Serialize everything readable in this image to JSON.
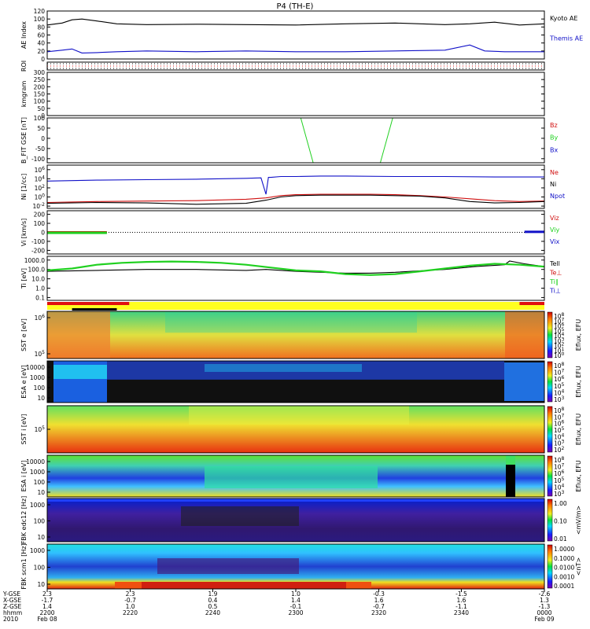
{
  "title": "P4 (TH-E)",
  "colors": {
    "black": "#000000",
    "blue": "#1010c8",
    "red": "#d01010",
    "green": "#20d020",
    "roi_red": "#e01010",
    "roi_yellow": "#ffff20"
  },
  "chart_data": [
    {
      "id": "ae",
      "type": "line",
      "ylabel": "AE Index",
      "yticks": [
        "120",
        "100",
        "80",
        "60",
        "40",
        "20",
        "0"
      ],
      "ylim": [
        0,
        120
      ],
      "series": [
        {
          "name": "Kyoto AE",
          "color": "#000000",
          "x": [
            0,
            3,
            5,
            7,
            10,
            14,
            20,
            30,
            40,
            50,
            60,
            70,
            80,
            85,
            90,
            95,
            100
          ],
          "y": [
            85,
            90,
            98,
            100,
            95,
            88,
            86,
            87,
            86,
            85,
            88,
            90,
            86,
            88,
            92,
            85,
            88
          ]
        },
        {
          "name": "Themis AE",
          "color": "#1010c8",
          "x": [
            0,
            3,
            5,
            7,
            10,
            14,
            20,
            30,
            40,
            50,
            60,
            70,
            80,
            85,
            88,
            92,
            96,
            100
          ],
          "y": [
            18,
            22,
            25,
            15,
            16,
            18,
            20,
            18,
            20,
            18,
            18,
            20,
            22,
            35,
            20,
            18,
            18,
            18
          ]
        }
      ]
    },
    {
      "id": "roi",
      "type": "heatmap",
      "ylabel": "ROI"
    },
    {
      "id": "kmgram",
      "type": "line",
      "ylabel": "kmgram",
      "yticks": [
        "300",
        "250",
        "200",
        "150",
        "100",
        "50",
        "0"
      ],
      "ylim": [
        0,
        300
      ],
      "series": []
    },
    {
      "id": "bfit",
      "type": "line",
      "ylabel": "B_FIT GSE [nT]",
      "yticks": [
        "100",
        "50",
        "0",
        "-50",
        "-100"
      ],
      "ylim": [
        -120,
        100
      ],
      "series": [
        {
          "name": "Bz",
          "color": "#d01010",
          "x": [],
          "y": []
        },
        {
          "name": "By",
          "color": "#20d020",
          "x": [
            51,
            53.5,
            67,
            69.5
          ],
          "y": [
            100,
            -120,
            -120,
            100
          ]
        },
        {
          "name": "Bx",
          "color": "#1010c8",
          "x": [],
          "y": []
        }
      ]
    },
    {
      "id": "ni",
      "type": "line",
      "log": true,
      "ylabel": "Ni",
      "yunits": "[1/cc]",
      "yticks": [
        "10^6",
        "10^4",
        "10^2",
        "10^0",
        "10^-2"
      ],
      "ylim": [
        -2.5,
        7
      ],
      "series": [
        {
          "name": "Ne",
          "color": "#d01010",
          "x": [
            0,
            10,
            20,
            30,
            40,
            44,
            47,
            50,
            55,
            60,
            65,
            70,
            75,
            80,
            85,
            90,
            95,
            100
          ],
          "y": [
            -1.2,
            -1.0,
            -0.9,
            -0.8,
            -0.5,
            -0.2,
            0.3,
            0.5,
            0.6,
            0.6,
            0.6,
            0.5,
            0.3,
            0.0,
            -0.4,
            -0.8,
            -1.0,
            -0.9
          ]
        },
        {
          "name": "Ni",
          "color": "#000000",
          "x": [
            0,
            10,
            20,
            30,
            40,
            44,
            47,
            50,
            55,
            60,
            65,
            70,
            75,
            80,
            85,
            90,
            95,
            100
          ],
          "y": [
            -1.4,
            -1.2,
            -1.3,
            -1.6,
            -1.4,
            -0.7,
            0.0,
            0.3,
            0.4,
            0.4,
            0.4,
            0.3,
            0.2,
            -0.2,
            -1.0,
            -1.3,
            -1.2,
            -1.0
          ]
        },
        {
          "name": "Npot",
          "color": "#1010c8",
          "x": [
            0,
            10,
            20,
            30,
            40,
            43,
            44,
            44.5,
            45,
            47,
            50,
            55,
            60,
            70,
            80,
            90,
            100
          ],
          "y": [
            3.5,
            3.7,
            3.8,
            3.9,
            4.1,
            4.2,
            0.6,
            4.3,
            4.3,
            4.5,
            4.5,
            4.6,
            4.6,
            4.5,
            4.5,
            4.4,
            4.4
          ]
        }
      ]
    },
    {
      "id": "vi",
      "type": "line",
      "ylabel": "Vi [km/s]",
      "yticks": [
        "200",
        "100",
        "0",
        "-100",
        "-200"
      ],
      "ylim": [
        -240,
        240
      ],
      "series": [
        {
          "name": "Viz",
          "color": "#d01010",
          "x": [
            0,
            12
          ],
          "y": [
            0,
            0
          ]
        },
        {
          "name": "Viy",
          "color": "#20d020",
          "x": [
            0,
            12
          ],
          "y": [
            -5,
            -5
          ]
        },
        {
          "name": "Vix",
          "color": "#1010c8",
          "x": [
            96,
            100
          ],
          "y": [
            5,
            5
          ]
        }
      ]
    },
    {
      "id": "ti",
      "type": "line",
      "log": true,
      "ylabel": "Ti [eV]",
      "yticks": [
        "1000.0",
        "100.0",
        "10.0",
        "1.0",
        "0.1"
      ],
      "ylim": [
        -1.3,
        3.4
      ],
      "series": [
        {
          "name": "Tell",
          "color": "#000000",
          "x": [
            0,
            10,
            20,
            30,
            40,
            44,
            50,
            60,
            65,
            70,
            80,
            86,
            92,
            93,
            96,
            100
          ],
          "y": [
            1.8,
            1.9,
            2.0,
            2.0,
            1.9,
            2.0,
            1.8,
            1.6,
            1.6,
            1.7,
            2.0,
            2.3,
            2.5,
            2.9,
            2.6,
            2.3
          ]
        },
        {
          "name": "Te⊥",
          "color": "#d01010",
          "x": [],
          "y": []
        },
        {
          "name": "Ti∥",
          "color": "#20d020",
          "x": [
            0,
            5,
            10,
            15,
            20,
            25,
            30,
            35,
            40,
            45,
            50,
            55,
            60,
            65,
            70,
            75,
            80,
            85,
            90,
            95,
            100
          ],
          "y": [
            1.9,
            2.1,
            2.5,
            2.7,
            2.8,
            2.85,
            2.8,
            2.7,
            2.5,
            2.2,
            1.9,
            1.8,
            1.5,
            1.4,
            1.5,
            1.8,
            2.1,
            2.4,
            2.6,
            2.5,
            2.3
          ]
        },
        {
          "name": "Ti⊥",
          "color": "#1010c8",
          "x": [],
          "y": []
        }
      ]
    },
    {
      "id": "region",
      "type": "heatmap"
    },
    {
      "id": "sst_e",
      "type": "heatmap",
      "ylabel": "SST e [eV]",
      "yticks": [
        "10^6",
        "10^5"
      ],
      "colorbar": "Eflux, EFU",
      "cbticks": [
        "10^8",
        "10^7",
        "10^6",
        "10^5",
        "10^4",
        "10^3",
        "10^2",
        "10^1",
        "10^0"
      ]
    },
    {
      "id": "esa_e",
      "type": "heatmap",
      "ylabel": "ESA e [eV]",
      "yticks": [
        "10000",
        "1000",
        "100",
        "10"
      ],
      "colorbar": "Eflux, EFU",
      "cbticks": [
        "10^8",
        "10^7",
        "10^6",
        "10^5",
        "10^4",
        "10^3"
      ]
    },
    {
      "id": "sst_i",
      "type": "heatmap",
      "ylabel": "SST i [eV]",
      "yticks": [
        "10^5"
      ],
      "colorbar": "Eflux, EFU",
      "cbticks": [
        "10^8",
        "10^7",
        "10^6",
        "10^5",
        "10^4",
        "10^3",
        "10^2"
      ]
    },
    {
      "id": "esa_i",
      "type": "heatmap",
      "ylabel": "ESA i [eV]",
      "yticks": [
        "10000",
        "1000",
        "100",
        "10"
      ],
      "colorbar": "Eflux, EFU",
      "cbticks": [
        "10^8",
        "10^7",
        "10^6",
        "10^5",
        "10^4",
        "10^3"
      ]
    },
    {
      "id": "fbk1",
      "type": "heatmap",
      "ylabel": "FBK edc12 [Hz]",
      "yticks": [
        "1000",
        "100",
        "10"
      ],
      "colorbar": "<mV/m>",
      "cbticks": [
        "1.00",
        "0.10",
        "0.01"
      ]
    },
    {
      "id": "fbk2",
      "type": "heatmap",
      "ylabel": "FBK scm1 [Hz]",
      "yticks": [
        "1000",
        "100",
        "10"
      ],
      "colorbar": "<nT>",
      "cbticks": [
        "1.0000",
        "0.1000",
        "0.0100",
        "0.0010",
        "0.0001"
      ]
    }
  ],
  "xaxis": {
    "row_labels": [
      "Y-GSE",
      "X-GSE",
      "Z-GSE",
      "hhmm",
      "2010"
    ],
    "ticks": [
      {
        "pos": 0,
        "v": [
          "2.3",
          "-1.7",
          "1.4",
          "2200",
          "Feb 08"
        ]
      },
      {
        "pos": 16.7,
        "v": [
          "2.3",
          "-0.7",
          "1.0",
          "2220",
          ""
        ]
      },
      {
        "pos": 33.3,
        "v": [
          "1.9",
          "0.4",
          "0.5",
          "2240",
          ""
        ]
      },
      {
        "pos": 50,
        "v": [
          "1.0",
          "1.4",
          "-0.1",
          "2300",
          ""
        ]
      },
      {
        "pos": 66.7,
        "v": [
          "-0.3",
          "1.6",
          "-0.7",
          "2320",
          ""
        ]
      },
      {
        "pos": 83.3,
        "v": [
          "-1.5",
          "1.6",
          "-1.1",
          "2340",
          ""
        ]
      },
      {
        "pos": 100,
        "v": [
          "-2.6",
          "1.3",
          "-1.3",
          "0000",
          "Feb 09"
        ]
      }
    ]
  }
}
